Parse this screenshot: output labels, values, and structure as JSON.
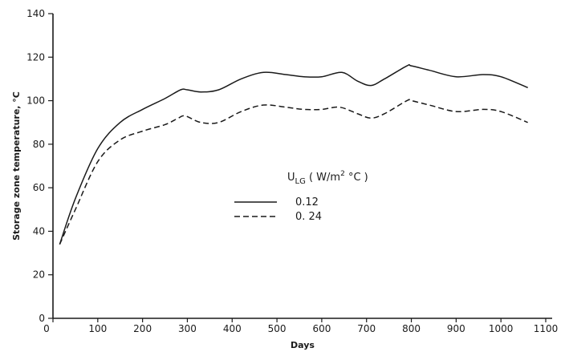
{
  "chart_data": {
    "type": "line",
    "xlabel": "Days",
    "ylabel": "Storage zone temperature, °C",
    "xlim": [
      0,
      1100
    ],
    "ylim": [
      0,
      140
    ],
    "x_ticks": [
      0,
      100,
      200,
      300,
      400,
      500,
      600,
      700,
      800,
      900,
      1000,
      1100
    ],
    "y_ticks": [
      0,
      20,
      40,
      60,
      80,
      100,
      120,
      140
    ],
    "grid": false,
    "legend": {
      "title_main": "U",
      "title_sub": "LG",
      "title_units_prefix": " ( W/m",
      "title_units_sup": "2",
      "title_units_suffix": " °C )",
      "placement": "center"
    },
    "series": [
      {
        "name": "0.12",
        "style": "solid",
        "x": [
          15,
          50,
          100,
          150,
          200,
          250,
          285,
          300,
          330,
          370,
          420,
          470,
          520,
          560,
          600,
          645,
          680,
          710,
          740,
          790,
          800,
          840,
          900,
          960,
          1000,
          1060
        ],
        "y": [
          34,
          55,
          78,
          90,
          96,
          101,
          105,
          105,
          104,
          105,
          110,
          113,
          112,
          111,
          111,
          113,
          109,
          107,
          110,
          116,
          116,
          114,
          111,
          112,
          111,
          106
        ]
      },
      {
        "name": "0. 24",
        "style": "dashed",
        "x": [
          15,
          50,
          100,
          150,
          200,
          250,
          280,
          295,
          330,
          370,
          420,
          470,
          520,
          560,
          600,
          640,
          680,
          710,
          740,
          790,
          800,
          840,
          900,
          960,
          1000,
          1060
        ],
        "y": [
          34,
          50,
          72,
          82,
          86,
          89,
          92,
          93,
          90,
          90,
          95,
          98,
          97,
          96,
          96,
          97,
          94,
          92,
          94,
          100,
          100,
          98,
          95,
          96,
          95,
          90
        ]
      }
    ]
  }
}
